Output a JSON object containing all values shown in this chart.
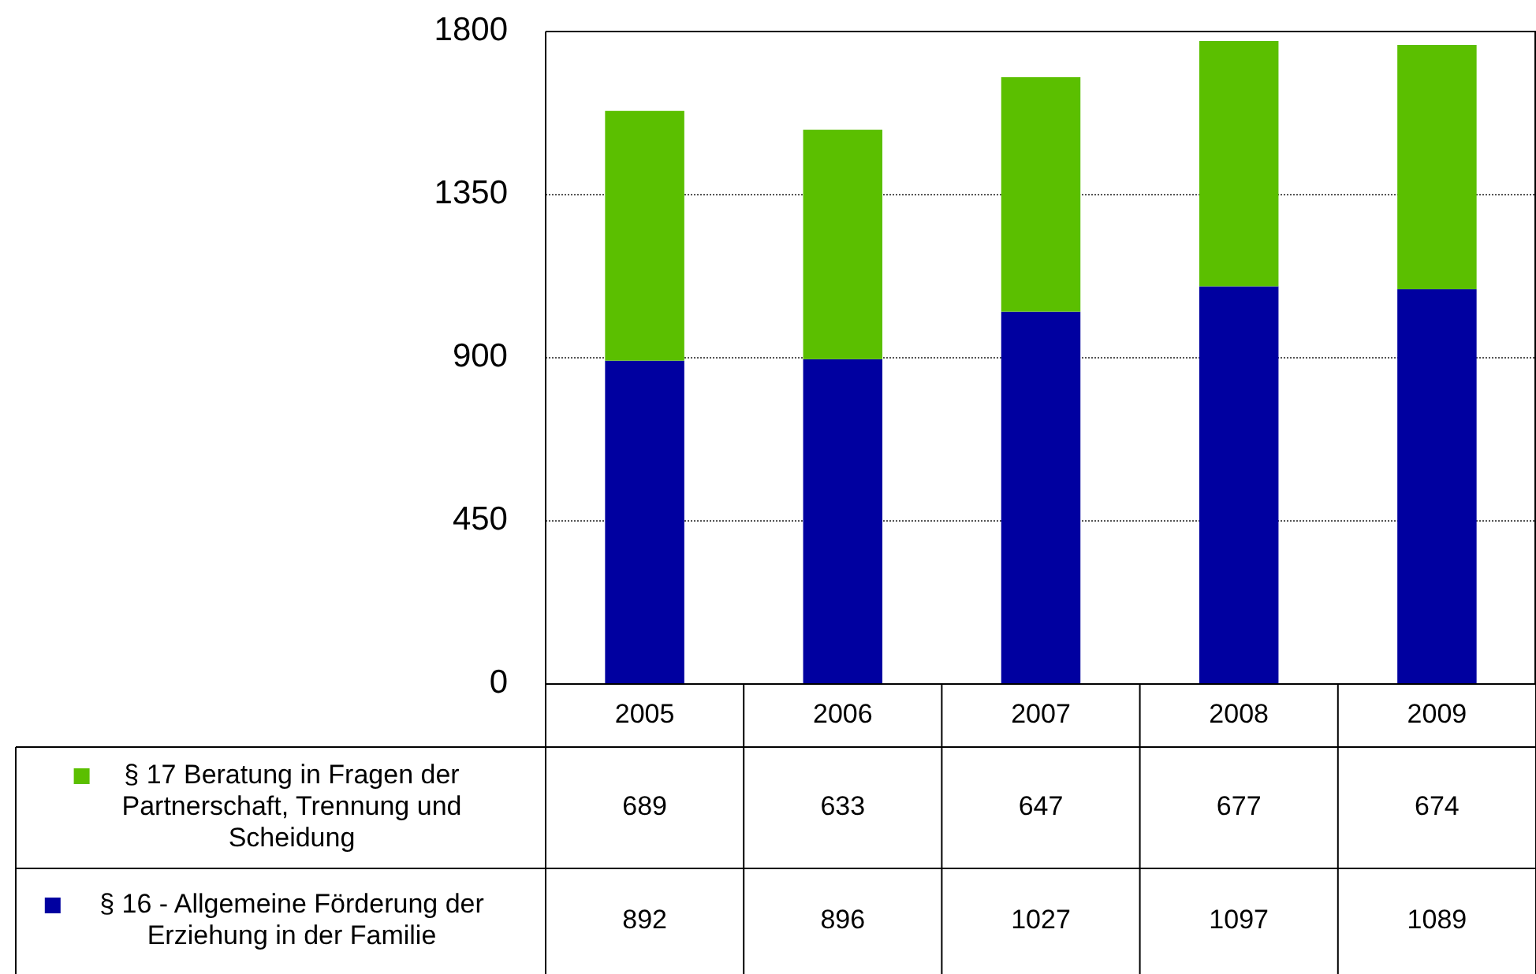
{
  "chart_data": {
    "type": "bar",
    "stacked": true,
    "categories": [
      "2005",
      "2006",
      "2007",
      "2008",
      "2009"
    ],
    "series": [
      {
        "name": "§ 16 - Allgemeine Förderung der Erziehung in der Familie",
        "color": "#0000a0",
        "values": [
          892,
          896,
          1027,
          1097,
          1089
        ]
      },
      {
        "name": "§ 17 Beratung in Fragen der Partnerschaft, Trennung und Scheidung",
        "color": "#5bbf00",
        "values": [
          689,
          633,
          647,
          677,
          674
        ]
      }
    ],
    "ylim": [
      0,
      1800
    ],
    "yticks": [
      0,
      450,
      900,
      1350,
      1800
    ],
    "grid": "y",
    "legend": "bottom",
    "data_labels": true
  }
}
